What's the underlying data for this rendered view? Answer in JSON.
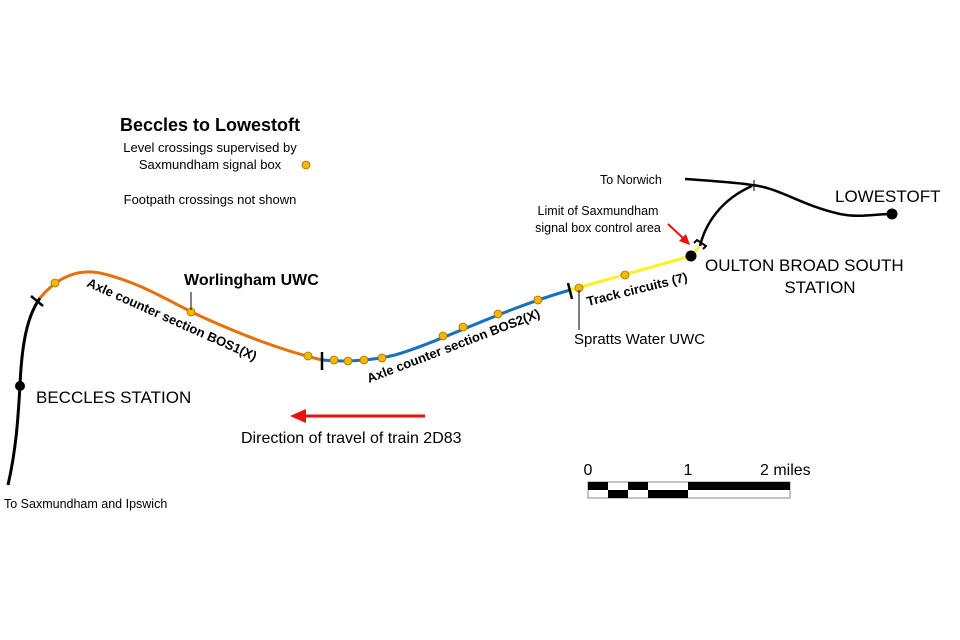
{
  "title": "Beccles to Lowestoft",
  "legend": {
    "line1": "Level crossings supervised by",
    "line2": "Saxmundham signal box",
    "note": "Footpath crossings not shown",
    "crossing_color": "#f5b800"
  },
  "labels": {
    "worlingham": "Worlingham UWC",
    "bos1": "Axle counter section BOS1(X)",
    "bos2": "Axle counter section BOS2(X)",
    "track_circuits": "Track circuits (7)",
    "spratts": "Spratts Water UWC",
    "limit_line1": "Limit of Saxmundham",
    "limit_line2": "signal box control area",
    "to_norwich": "To Norwich",
    "lowestoft": "LOWESTOFT",
    "oulton_line1": "OULTON BROAD SOUTH",
    "oulton_line2": "STATION",
    "beccles": "BECCLES STATION",
    "to_saxmundham": "To Saxmundham and Ipswich",
    "direction": "Direction of travel of train 2D83"
  },
  "scale": {
    "t0": "0",
    "t1": "1",
    "t2": "2 miles"
  },
  "colors": {
    "bos1": "#e8700a",
    "bos2": "#1a6fc0",
    "track": "#f5f520",
    "arrow": "#e81010"
  }
}
